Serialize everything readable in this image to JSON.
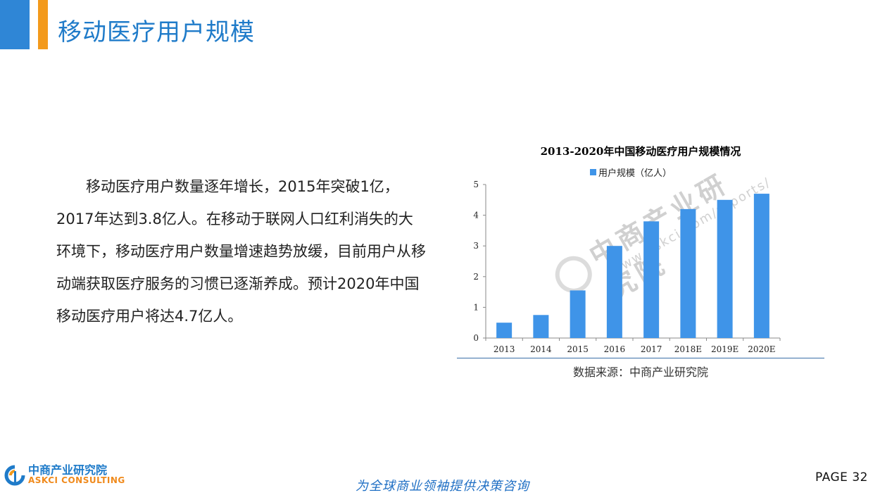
{
  "header": {
    "title": "移动医疗用户规模"
  },
  "body": {
    "paragraph": "移动医疗用户数量逐年增长，2015年突破1亿，2017年达到3.8亿人。在移动于联网人口红利消失的大环境下，移动医疗用户数量增速趋势放缓，目前用户从移动端获取医疗服务的习惯已逐渐养成。预计2020年中国移动医疗用户将达4.7亿人。"
  },
  "chart_data": {
    "type": "bar",
    "title": "2013-2020年中国移动医疗用户规模情况",
    "categories": [
      "2013",
      "2014",
      "2015",
      "2016",
      "2017",
      "2018E",
      "2019E",
      "2020E"
    ],
    "series": [
      {
        "name": "用户规模（亿人）",
        "values": [
          0.5,
          0.75,
          1.55,
          3.0,
          3.8,
          4.2,
          4.5,
          4.7
        ]
      }
    ],
    "ylim": [
      0,
      5
    ],
    "yticks": [
      "0",
      "1",
      "2",
      "3",
      "4",
      "5"
    ],
    "legend_position": "top",
    "grid": false,
    "color": "#3f94e8"
  },
  "chart_source": "数据来源：中商产业研究院",
  "watermark": {
    "main": "中商产业研究院",
    "url": "www.askci.com/reports/"
  },
  "footer": {
    "logo_cn": "中商产业研究院",
    "logo_en": "ASKCI CONSULTING",
    "slogan": "为全球商业领袖提供决策咨询",
    "page": "PAGE  32"
  },
  "colors": {
    "accent_blue": "#2f86d6",
    "accent_orange": "#f39a1c",
    "title_blue": "#1f7bc9"
  }
}
